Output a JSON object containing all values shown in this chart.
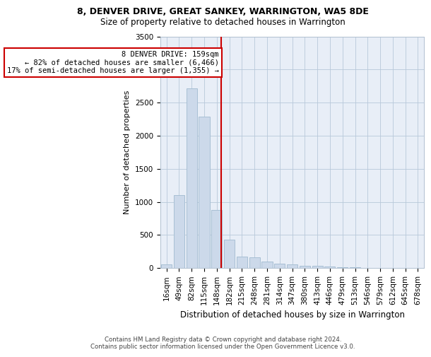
{
  "title1": "8, DENVER DRIVE, GREAT SANKEY, WARRINGTON, WA5 8DE",
  "title2": "Size of property relative to detached houses in Warrington",
  "xlabel": "Distribution of detached houses by size in Warrington",
  "ylabel": "Number of detached properties",
  "property_label": "8 DENVER DRIVE: 159sqm",
  "annotation_line1": "← 82% of detached houses are smaller (6,466)",
  "annotation_line2": "17% of semi-detached houses are larger (1,355) →",
  "footer1": "Contains HM Land Registry data © Crown copyright and database right 2024.",
  "footer2": "Contains public sector information licensed under the Open Government Licence v3.0.",
  "bar_color": "#ccd9ea",
  "bar_edge_color": "#a8bfd4",
  "vline_color": "#cc0000",
  "annotation_box_color": "#cc0000",
  "plot_bg_color": "#e8eef7",
  "categories": [
    "16sqm",
    "49sqm",
    "82sqm",
    "115sqm",
    "148sqm",
    "182sqm",
    "215sqm",
    "248sqm",
    "281sqm",
    "314sqm",
    "347sqm",
    "380sqm",
    "413sqm",
    "446sqm",
    "479sqm",
    "513sqm",
    "546sqm",
    "579sqm",
    "612sqm",
    "645sqm",
    "678sqm"
  ],
  "values": [
    55,
    1100,
    2720,
    2290,
    880,
    430,
    175,
    165,
    95,
    65,
    55,
    35,
    35,
    20,
    15,
    10,
    5,
    5,
    5,
    5,
    5
  ],
  "vline_bin": 4.33,
  "ylim": [
    0,
    3500
  ],
  "yticks": [
    0,
    500,
    1000,
    1500,
    2000,
    2500,
    3000,
    3500
  ],
  "title1_fontsize": 9.0,
  "title2_fontsize": 8.5,
  "tick_fontsize": 7.5,
  "ylabel_fontsize": 8.0,
  "xlabel_fontsize": 8.5,
  "footer_fontsize": 6.2,
  "annot_fontsize": 7.5
}
